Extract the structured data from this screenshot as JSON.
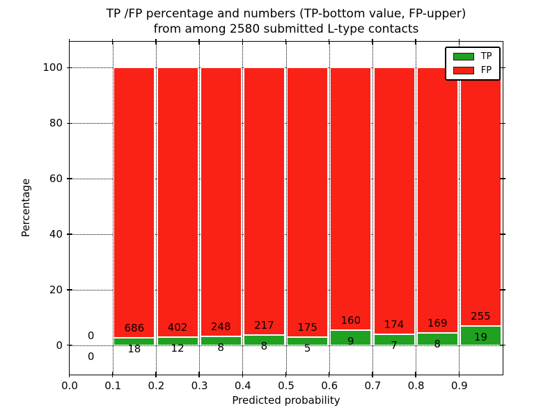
{
  "chart_data": {
    "type": "bar",
    "stacked": true,
    "percent_stacked": true,
    "title_line1": "TP /FP percentage and numbers (TP-bottom value, FP-upper)",
    "title_line2": "from among 2580 submitted L-type contacts",
    "total_contacts": 2580,
    "xlabel": "Predicted probability",
    "ylabel": "Percentage",
    "xlim": [
      0.0,
      1.0
    ],
    "ylim": [
      -10.5,
      109.5
    ],
    "xticks": [
      0.0,
      0.1,
      0.2,
      0.3,
      0.4,
      0.5,
      0.6,
      0.7,
      0.8,
      0.9
    ],
    "yticks": [
      0,
      20,
      40,
      60,
      80,
      100
    ],
    "grid": true,
    "grid_style": "dotted",
    "legend_position": "upper right",
    "bin_edges": [
      0.0,
      0.1,
      0.2,
      0.3,
      0.4,
      0.5,
      0.6,
      0.7,
      0.8,
      0.9,
      1.0
    ],
    "categories": [
      "0.0-0.1",
      "0.1-0.2",
      "0.2-0.3",
      "0.3-0.4",
      "0.4-0.5",
      "0.5-0.6",
      "0.6-0.7",
      "0.7-0.8",
      "0.8-0.9",
      "0.9-1.0"
    ],
    "series": [
      {
        "name": "TP",
        "color": "#21a121",
        "counts": [
          0,
          18,
          12,
          8,
          8,
          5,
          9,
          7,
          8,
          19
        ]
      },
      {
        "name": "FP",
        "color": "#fa2116",
        "counts": [
          0,
          686,
          402,
          248,
          217,
          175,
          160,
          174,
          169,
          255
        ]
      }
    ]
  }
}
